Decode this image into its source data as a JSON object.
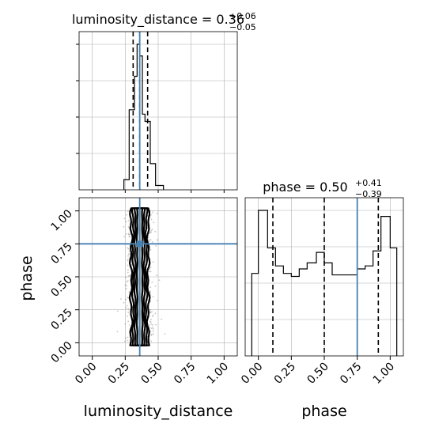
{
  "chart_data": [
    {
      "type": "histogram",
      "panel": "luminosity_distance marginal",
      "title": {
        "prefix": "luminosity_distance = ",
        "value": "0.36",
        "plus": "+0.06",
        "minus": "−0.05"
      },
      "param": "luminosity_distance",
      "xlim": [
        -0.1,
        1.1
      ],
      "bins": [
        {
          "x0": 0.24,
          "x1": 0.28,
          "v": 0.07
        },
        {
          "x0": 0.28,
          "x1": 0.32,
          "v": 0.55
        },
        {
          "x0": 0.32,
          "x1": 0.34,
          "v": 0.78
        },
        {
          "x0": 0.34,
          "x1": 0.36,
          "v": 1.0
        },
        {
          "x0": 0.36,
          "x1": 0.38,
          "v": 0.92
        },
        {
          "x0": 0.38,
          "x1": 0.4,
          "v": 0.52
        },
        {
          "x0": 0.4,
          "x1": 0.44,
          "v": 0.47
        },
        {
          "x0": 0.44,
          "x1": 0.48,
          "v": 0.18
        },
        {
          "x0": 0.48,
          "x1": 0.54,
          "v": 0.03
        }
      ],
      "quantiles": [
        0.31,
        0.36,
        0.42
      ],
      "truth": 0.36
    },
    {
      "type": "histogram",
      "panel": "phase marginal",
      "title": {
        "prefix": "phase = ",
        "value": "0.50",
        "plus": "+0.41",
        "minus": "−0.39"
      },
      "param": "phase",
      "xlim": [
        -0.1,
        1.1
      ],
      "xticks": [
        "0.00",
        "0.25",
        "0.50",
        "0.75",
        "1.00"
      ],
      "xlabel": "phase",
      "bins": [
        {
          "x0": -0.05,
          "x1": 0.0,
          "v": 0.55
        },
        {
          "x0": 0.0,
          "x1": 0.07,
          "v": 0.97
        },
        {
          "x0": 0.07,
          "x1": 0.13,
          "v": 0.72
        },
        {
          "x0": 0.13,
          "x1": 0.19,
          "v": 0.6
        },
        {
          "x0": 0.19,
          "x1": 0.25,
          "v": 0.55
        },
        {
          "x0": 0.25,
          "x1": 0.31,
          "v": 0.53
        },
        {
          "x0": 0.31,
          "x1": 0.37,
          "v": 0.58
        },
        {
          "x0": 0.37,
          "x1": 0.44,
          "v": 0.62
        },
        {
          "x0": 0.44,
          "x1": 0.5,
          "v": 0.69
        },
        {
          "x0": 0.5,
          "x1": 0.56,
          "v": 0.62
        },
        {
          "x0": 0.56,
          "x1": 0.63,
          "v": 0.54
        },
        {
          "x0": 0.63,
          "x1": 0.75,
          "v": 0.54
        },
        {
          "x0": 0.75,
          "x1": 0.81,
          "v": 0.58
        },
        {
          "x0": 0.81,
          "x1": 0.87,
          "v": 0.6
        },
        {
          "x0": 0.87,
          "x1": 0.93,
          "v": 0.7
        },
        {
          "x0": 0.93,
          "x1": 1.0,
          "v": 0.93
        },
        {
          "x0": 1.0,
          "x1": 1.05,
          "v": 0.72
        }
      ],
      "quantiles": [
        0.11,
        0.5,
        0.91
      ],
      "truth": 0.75
    },
    {
      "type": "scatter",
      "panel": "2D posterior luminosity_distance vs phase",
      "xlabel": "luminosity_distance",
      "ylabel": "phase",
      "xlim": [
        -0.1,
        1.1
      ],
      "ylim": [
        -0.1,
        1.1
      ],
      "xticks": [
        "0.00",
        "0.25",
        "0.50",
        "0.75",
        "1.00"
      ],
      "yticks": [
        "0.00",
        "0.25",
        "0.50",
        "0.75",
        "1.00"
      ],
      "samples": {
        "x_center": 0.36,
        "x_spread": 0.05,
        "y_range": [
          0.0,
          1.0
        ]
      },
      "contours": [
        {
          "x_half_width": 0.02
        },
        {
          "x_half_width": 0.035
        },
        {
          "x_half_width": 0.05
        },
        {
          "x_half_width": 0.065
        }
      ],
      "truth": {
        "x": 0.36,
        "y": 0.75
      }
    }
  ],
  "colors": {
    "truth": "#4682b4",
    "hist": "#000000",
    "grid": "#b0b0b0",
    "points": "#555555"
  }
}
